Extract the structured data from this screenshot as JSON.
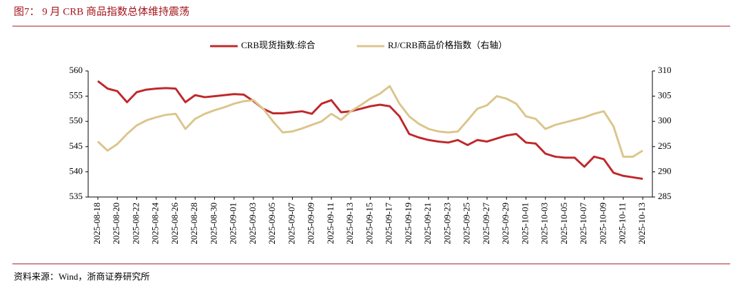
{
  "chart_data": {
    "type": "line",
    "title": "图7： 9 月 CRB 商品指数总体维持震荡",
    "source": "资料来源：Wind，浙商证券研究所",
    "x": [
      "2025-08-18",
      "2025-08-19",
      "2025-08-20",
      "2025-08-21",
      "2025-08-22",
      "2025-08-23",
      "2025-08-24",
      "2025-08-25",
      "2025-08-26",
      "2025-08-27",
      "2025-08-28",
      "2025-08-29",
      "2025-08-30",
      "2025-08-31",
      "2025-09-01",
      "2025-09-02",
      "2025-09-03",
      "2025-09-04",
      "2025-09-05",
      "2025-09-06",
      "2025-09-07",
      "2025-09-08",
      "2025-09-09",
      "2025-09-10",
      "2025-09-11",
      "2025-09-12",
      "2025-09-13",
      "2025-09-14",
      "2025-09-15",
      "2025-09-16",
      "2025-09-17",
      "2025-09-18",
      "2025-09-19",
      "2025-09-20",
      "2025-09-21",
      "2025-09-22",
      "2025-09-23",
      "2025-09-24",
      "2025-09-25",
      "2025-09-26",
      "2025-09-27",
      "2025-09-28",
      "2025-09-29",
      "2025-09-30",
      "2025-10-01",
      "2025-10-02",
      "2025-10-03",
      "2025-10-04",
      "2025-10-05",
      "2025-10-06",
      "2025-10-07",
      "2025-10-08",
      "2025-10-09",
      "2025-10-10",
      "2025-10-11",
      "2025-10-12",
      "2025-10-13"
    ],
    "series": [
      {
        "name": "CRB现货指数:综合",
        "color": "#c0282b",
        "axis": "y",
        "values": [
          558,
          556.5,
          556,
          553.8,
          555.8,
          556.3,
          556.5,
          556.6,
          556.5,
          553.8,
          555.2,
          554.8,
          555,
          555.2,
          555.4,
          555.3,
          554,
          552.5,
          551.6,
          551.6,
          551.8,
          552,
          551.5,
          553.5,
          554.2,
          551.8,
          552,
          552.5,
          553,
          553.3,
          553,
          551,
          547.5,
          546.8,
          546.3,
          546,
          545.8,
          546.3,
          545.3,
          546.3,
          546,
          546.6,
          547.2,
          547.5,
          545.8,
          545.6,
          543.6,
          543,
          542.8,
          542.8,
          541,
          543,
          542.5,
          539.8,
          539.2,
          538.9,
          538.6
        ]
      },
      {
        "name": "RJ/CRB商品价格指数（右轴）",
        "color": "#dcc58c",
        "axis": "y2",
        "values": [
          296,
          294.2,
          295.5,
          297.5,
          299.2,
          300.2,
          300.8,
          301.3,
          301.5,
          298.5,
          300.5,
          301.5,
          302.2,
          302.8,
          303.5,
          304,
          304.2,
          302.5,
          300,
          297.8,
          298,
          298.6,
          299.3,
          300,
          301.5,
          300.3,
          302,
          303.2,
          304.5,
          305.5,
          307,
          303.5,
          301,
          299.5,
          298.5,
          298,
          297.8,
          298,
          300.2,
          302.5,
          303.2,
          305,
          304.5,
          303.5,
          301,
          300.5,
          298.5,
          299.3,
          299.8,
          300.3,
          300.8,
          301.5,
          302,
          299,
          293,
          293,
          294.2
        ]
      }
    ],
    "xticks": [
      "2025-08-18",
      "2025-08-20",
      "2025-08-22",
      "2025-08-24",
      "2025-08-26",
      "2025-08-28",
      "2025-08-30",
      "2025-09-01",
      "2025-09-03",
      "2025-09-05",
      "2025-09-07",
      "2025-09-09",
      "2025-09-11",
      "2025-09-13",
      "2025-09-15",
      "2025-09-17",
      "2025-09-19",
      "2025-09-21",
      "2025-09-23",
      "2025-09-25",
      "2025-09-27",
      "2025-09-29",
      "2025-10-01",
      "2025-10-03",
      "2025-10-05",
      "2025-10-07",
      "2025-10-09",
      "2025-10-11",
      "2025-10-13"
    ],
    "ylim": [
      535,
      560
    ],
    "yticks": [
      535,
      540,
      545,
      550,
      555,
      560
    ],
    "y2lim": [
      285,
      310
    ],
    "y2ticks": [
      285,
      290,
      295,
      300,
      305,
      310
    ],
    "legend": "top"
  }
}
